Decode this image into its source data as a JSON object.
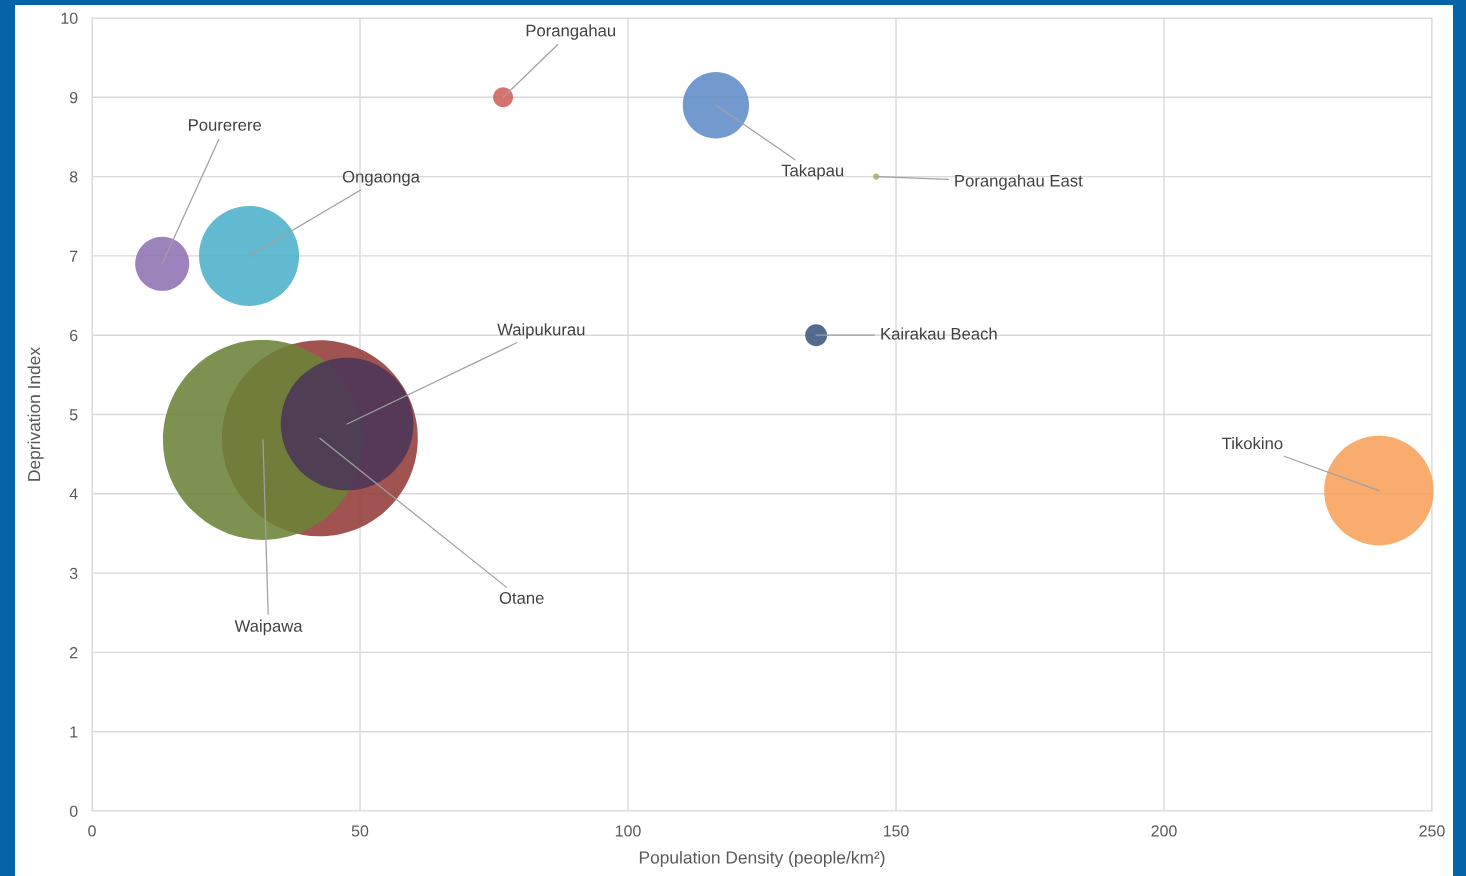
{
  "chart_data": {
    "type": "bubble",
    "xlabel": "Population Density (people/km²)",
    "ylabel": "Deprivation Index",
    "xlim": [
      0,
      250
    ],
    "xticks": [
      0,
      50,
      100,
      150,
      200,
      250
    ],
    "ylim": [
      0,
      10
    ],
    "yticks": [
      0,
      1,
      2,
      3,
      4,
      5,
      6,
      7,
      8,
      9,
      10
    ],
    "grid": true,
    "legend": false,
    "series": [
      {
        "name": "Pourerere",
        "color": "#8f72b3",
        "x": [
          13.1
        ],
        "values": [
          6.9
        ],
        "sizes": [
          0.073
        ]
      },
      {
        "name": "Ongaonga",
        "color": "#4bb0c8",
        "x": [
          29.3
        ],
        "values": [
          7.0
        ],
        "sizes": [
          0.25
        ]
      },
      {
        "name": "Porangahau",
        "color": "#d0605c",
        "x": [
          76.7
        ],
        "values": [
          9.0
        ],
        "sizes": [
          0.01
        ]
      },
      {
        "name": "Takapau",
        "color": "#5f8cc8",
        "x": [
          116.4
        ],
        "values": [
          8.9
        ],
        "sizes": [
          0.11
        ]
      },
      {
        "name": "Porangahau East",
        "color": "#9bbb59",
        "x": [
          146.3
        ],
        "values": [
          8.0
        ],
        "sizes": [
          0.001
        ]
      },
      {
        "name": "Kairakau Beach",
        "color": "#3c5580",
        "x": [
          135.1
        ],
        "values": [
          6.0
        ],
        "sizes": [
          0.012
        ]
      },
      {
        "name": "Tikokino",
        "color": "#f7a15a",
        "x": [
          240.1
        ],
        "values": [
          4.04
        ],
        "sizes": [
          0.3
        ]
      },
      {
        "name": "Otane",
        "color": "#943b39",
        "x": [
          42.5
        ],
        "values": [
          4.7
        ],
        "sizes": [
          0.96
        ]
      },
      {
        "name": "Waipawa",
        "color": "#6b8339",
        "x": [
          31.9
        ],
        "values": [
          4.68
        ],
        "sizes": [
          1.0
        ]
      },
      {
        "name": "Waipukurau",
        "color": "#4a3658",
        "x": [
          47.6
        ],
        "values": [
          4.88
        ],
        "sizes": [
          0.44
        ]
      }
    ]
  }
}
